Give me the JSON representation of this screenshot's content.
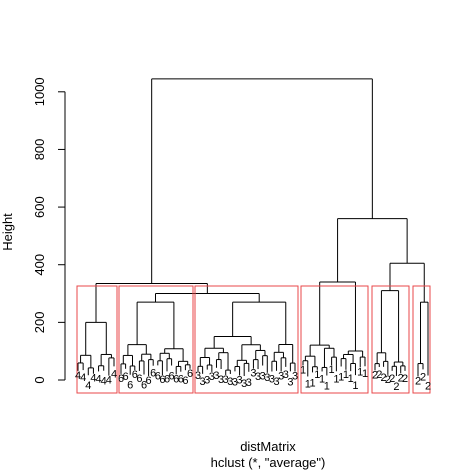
{
  "chart_data": {
    "type": "dendrogram",
    "ylabel": "Height",
    "xlabel": "distMatrix",
    "sublabel": "hclust (*, \"average\")",
    "ylim": [
      0,
      1050
    ],
    "yticks": [
      0,
      200,
      400,
      600,
      800,
      1000
    ],
    "ytick_labels": [
      "0",
      "200",
      "400",
      "600",
      "800",
      "1000"
    ],
    "line_color": "#000000",
    "box_color": "#e8474a",
    "merges": [
      {
        "name": "root",
        "left_group": "groups-1-3",
        "right_group": "groups-4-6",
        "height": 1045
      },
      {
        "name": "groups-4-6",
        "left_group": "group-4",
        "right_group": "groups-5-6",
        "height": 560
      },
      {
        "name": "groups-5-6",
        "left_group": "group-5",
        "right_group": "group-6",
        "height": 405
      },
      {
        "name": "groups-1-3",
        "left_group": "group-1",
        "right_group": "groups-2-3",
        "height": 335
      },
      {
        "name": "groups-2-3",
        "left_group": "group-2",
        "right_group": "group-3",
        "height": 300
      }
    ],
    "clusters": [
      {
        "name": "group-1",
        "label": "4",
        "height": 200,
        "leaves": 8
      },
      {
        "name": "group-2",
        "label": "6",
        "height": 270,
        "leaves": 16
      },
      {
        "name": "group-3",
        "label": "3",
        "height": 270,
        "leaves": 22
      },
      {
        "name": "group-4",
        "label": "1",
        "height": 340,
        "leaves": 14
      },
      {
        "name": "group-5",
        "label": "2",
        "height": 310,
        "leaves": 8
      },
      {
        "name": "group-6",
        "label": "2",
        "height": 270,
        "leaves": 3
      }
    ]
  }
}
